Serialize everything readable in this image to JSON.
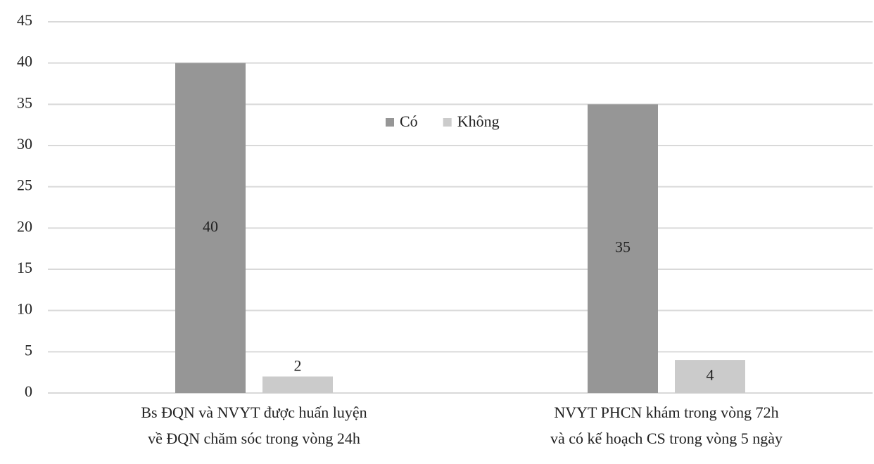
{
  "chart_data": {
    "type": "bar",
    "categories": [
      [
        "Bs ĐQN và NVYT được huấn luyện",
        "về ĐQN chăm sóc trong vòng 24h"
      ],
      [
        "NVYT PHCN khám trong vòng 72h",
        "và có kế hoạch CS trong vòng 5 ngày"
      ]
    ],
    "series": [
      {
        "name": "Có",
        "color": "#969696",
        "values": [
          40,
          35
        ]
      },
      {
        "name": "Không",
        "color": "#cbcbcb",
        "values": [
          2,
          4
        ]
      }
    ],
    "ylim": [
      0,
      45
    ],
    "yticks": [
      0,
      5,
      10,
      15,
      20,
      25,
      30,
      35,
      40,
      45
    ],
    "grid": true,
    "legend": "top"
  }
}
